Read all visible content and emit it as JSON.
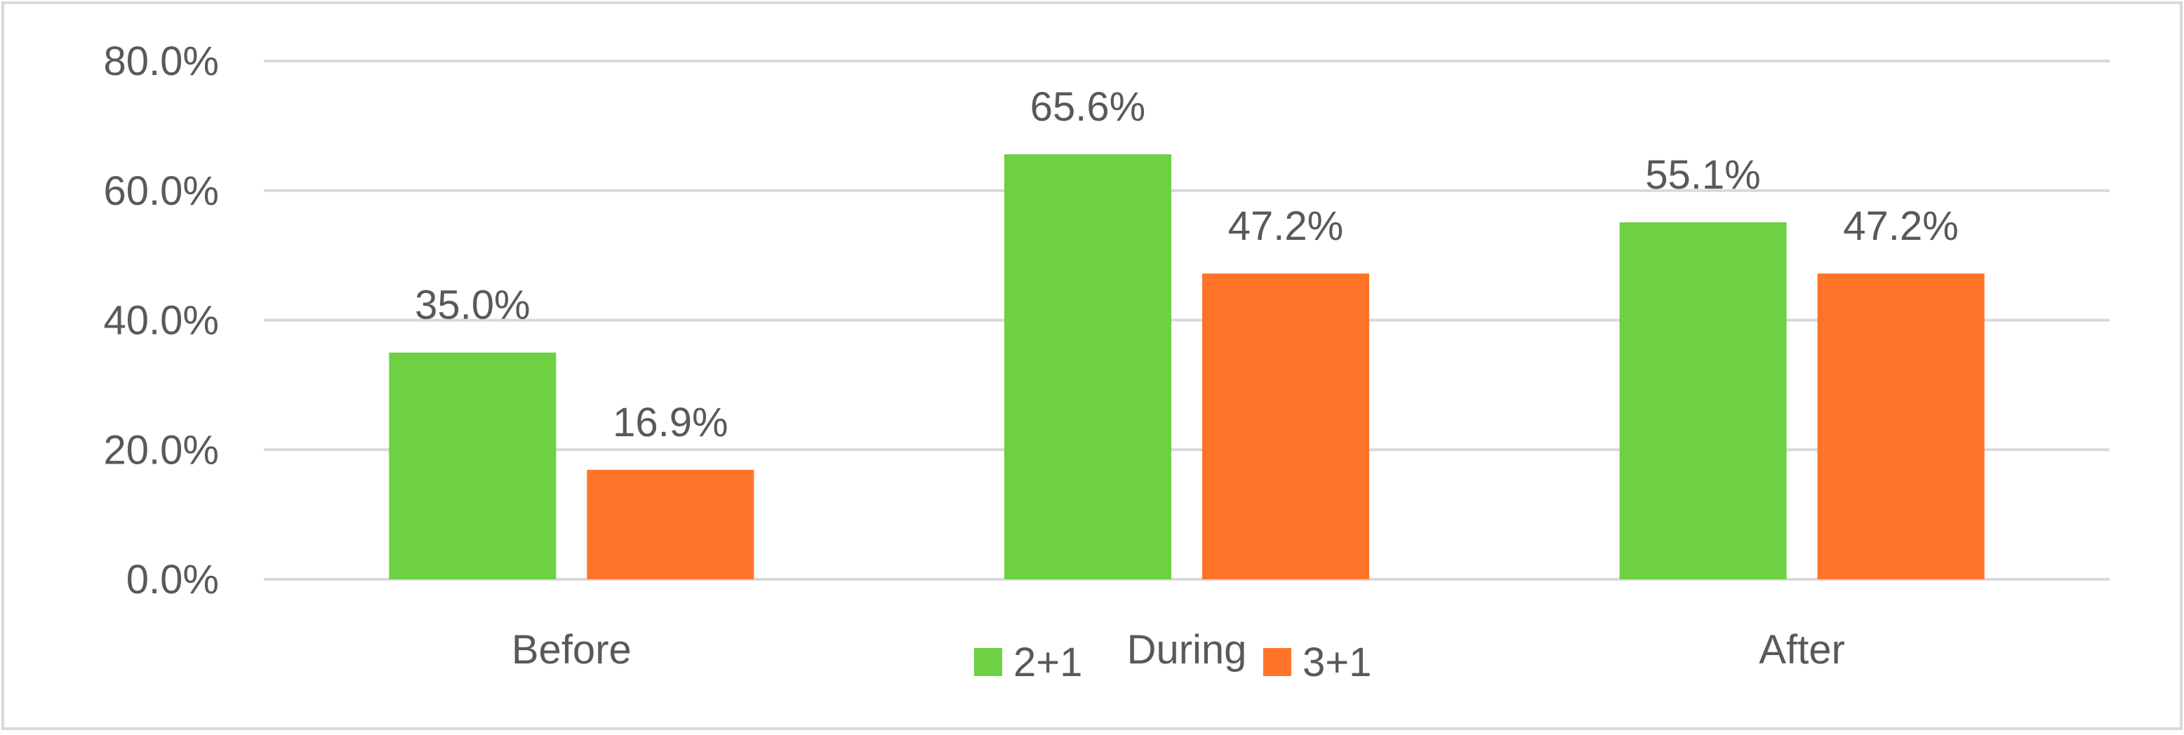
{
  "chart_data": {
    "type": "bar",
    "title": "",
    "xlabel": "",
    "ylabel": "",
    "categories": [
      "Before",
      "During",
      "After"
    ],
    "ylim": [
      0,
      80
    ],
    "yticks": [
      "0.0%",
      "20.0%",
      "40.0%",
      "60.0%",
      "80.0%"
    ],
    "grid": true,
    "legend_position": "bottom",
    "series": [
      {
        "name": "2+1",
        "color": "#6ed043",
        "values": [
          35.0,
          65.6,
          55.1
        ],
        "labels": [
          "35.0%",
          "65.6%",
          "55.1%"
        ]
      },
      {
        "name": "3+1",
        "color": "#ff7429",
        "values": [
          16.9,
          47.2,
          47.2
        ],
        "labels": [
          "16.9%",
          "47.2%",
          "47.2%"
        ]
      }
    ]
  }
}
